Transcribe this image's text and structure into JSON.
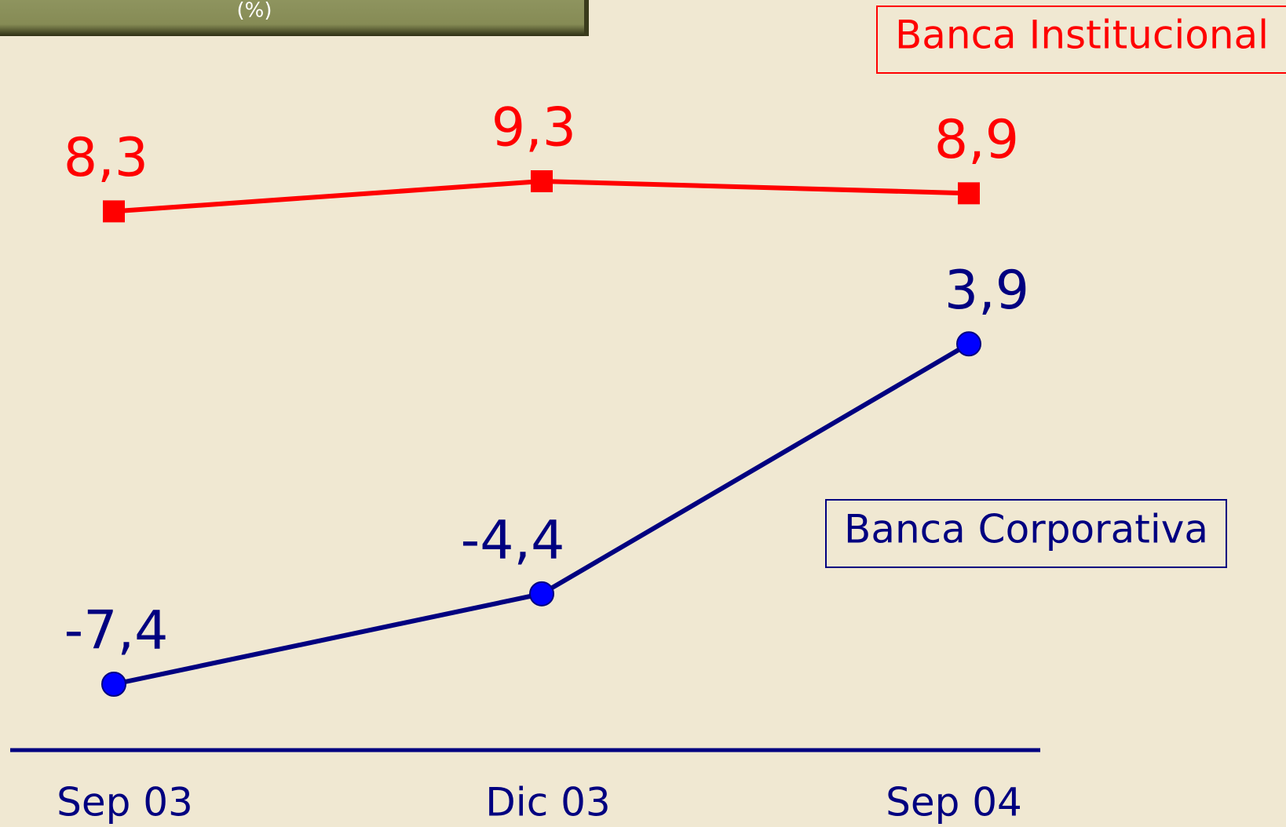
{
  "chart_data": {
    "type": "line",
    "title": "(%)",
    "categories": [
      "Sep 03",
      "Dic 03",
      "Sep 04"
    ],
    "series": [
      {
        "name": "Banca Institucional",
        "color": "#ff0000",
        "marker": "square",
        "values": [
          8.3,
          9.3,
          8.9
        ],
        "value_labels": [
          "8,3",
          "9,3",
          "8,9"
        ]
      },
      {
        "name": "Banca Corporativa",
        "color": "#000080",
        "marker": "circle",
        "values": [
          -7.4,
          -4.4,
          3.9
        ],
        "value_labels": [
          "-7,4",
          "-4,4",
          "3,9"
        ]
      }
    ]
  }
}
